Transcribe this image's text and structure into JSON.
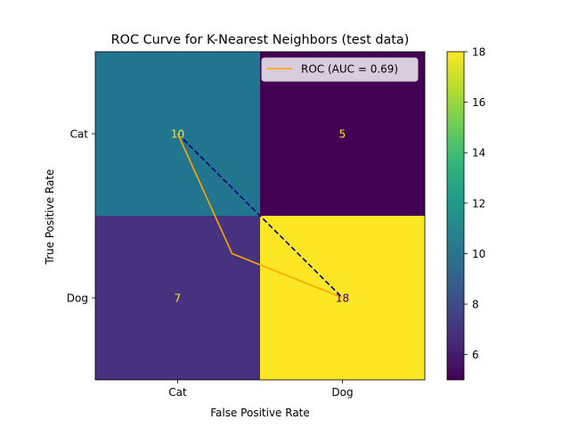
{
  "chart_data": {
    "type": "heatmap",
    "title": "ROC Curve for K-Nearest Neighbors (test data)",
    "xlabel": "False Positive Rate",
    "ylabel": "True Positive Rate",
    "x_categories": [
      "Cat",
      "Dog"
    ],
    "y_categories": [
      "Cat",
      "Dog"
    ],
    "matrix": [
      [
        10,
        5
      ],
      [
        7,
        18
      ]
    ],
    "colormap": "viridis",
    "colorbar": {
      "min": 5,
      "max": 18,
      "ticks": [
        6,
        8,
        10,
        12,
        14,
        16,
        18
      ]
    },
    "cell_colors": [
      [
        "#21758e",
        "#440255"
      ],
      [
        "#46327e",
        "#fde725"
      ]
    ],
    "annotation_colors": [
      [
        "#fde725",
        "#fde725"
      ],
      [
        "#fde725",
        "#440154"
      ]
    ],
    "overlay_lines": [
      {
        "name": "ROC (AUC = 0.69)",
        "style": "solid",
        "color": "#ffa500",
        "x": [
          0.0,
          0.33,
          1.0
        ],
        "y": [
          0.0,
          0.73,
          1.0
        ]
      },
      {
        "style": "dashed",
        "color": "#000080",
        "x": [
          0.0,
          1.0
        ],
        "y": [
          0.0,
          1.0
        ]
      }
    ],
    "legend": {
      "position": "top-right",
      "entries": [
        "ROC (AUC = 0.69)"
      ]
    }
  }
}
